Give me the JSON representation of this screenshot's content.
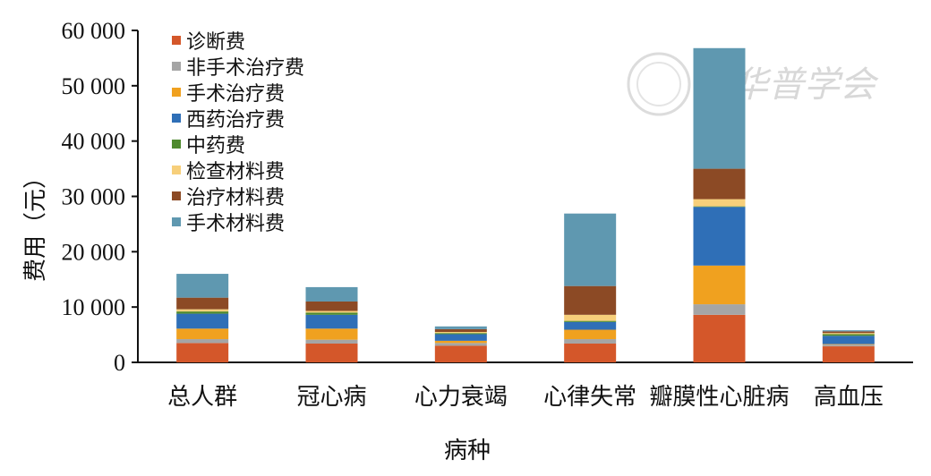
{
  "watermark": "中华普学会",
  "chart_data": {
    "type": "bar",
    "stacked": true,
    "xlabel": "病种",
    "ylabel": "费用（元）",
    "ylim": [
      0,
      60000
    ],
    "yticks": [
      0,
      10000,
      20000,
      30000,
      40000,
      50000,
      60000
    ],
    "ytick_labels": [
      "0",
      "10 000",
      "20 000",
      "30 000",
      "40 000",
      "50 000",
      "60 000"
    ],
    "legend_position": "top-left",
    "categories": [
      "总人群",
      "冠心病",
      "心力衰竭",
      "心律失常",
      "瓣膜性心脏病",
      "高血压"
    ],
    "series": [
      {
        "name": "诊断费",
        "color": "#d4572a",
        "values": [
          3500,
          3400,
          3000,
          3400,
          8600,
          2900
        ]
      },
      {
        "name": "非手术治疗费",
        "color": "#a5a5a5",
        "values": [
          700,
          700,
          500,
          800,
          1900,
          300
        ]
      },
      {
        "name": "手术治疗费",
        "color": "#f0a11f",
        "values": [
          1900,
          2000,
          400,
          1700,
          7000,
          100
        ]
      },
      {
        "name": "西药治疗费",
        "color": "#2f6fb7",
        "values": [
          2700,
          2500,
          1200,
          1400,
          10600,
          1500
        ]
      },
      {
        "name": "中药费",
        "color": "#4f8a2e",
        "values": [
          400,
          400,
          200,
          200,
          100,
          300
        ]
      },
      {
        "name": "检查材料费",
        "color": "#f7cf7a",
        "values": [
          400,
          300,
          200,
          1100,
          1300,
          200
        ]
      },
      {
        "name": "治疗材料费",
        "color": "#8c4a25",
        "values": [
          2100,
          1700,
          500,
          5200,
          5500,
          300
        ]
      },
      {
        "name": "手术材料费",
        "color": "#5f98b0",
        "values": [
          4300,
          2600,
          500,
          13100,
          21800,
          200
        ]
      }
    ]
  }
}
